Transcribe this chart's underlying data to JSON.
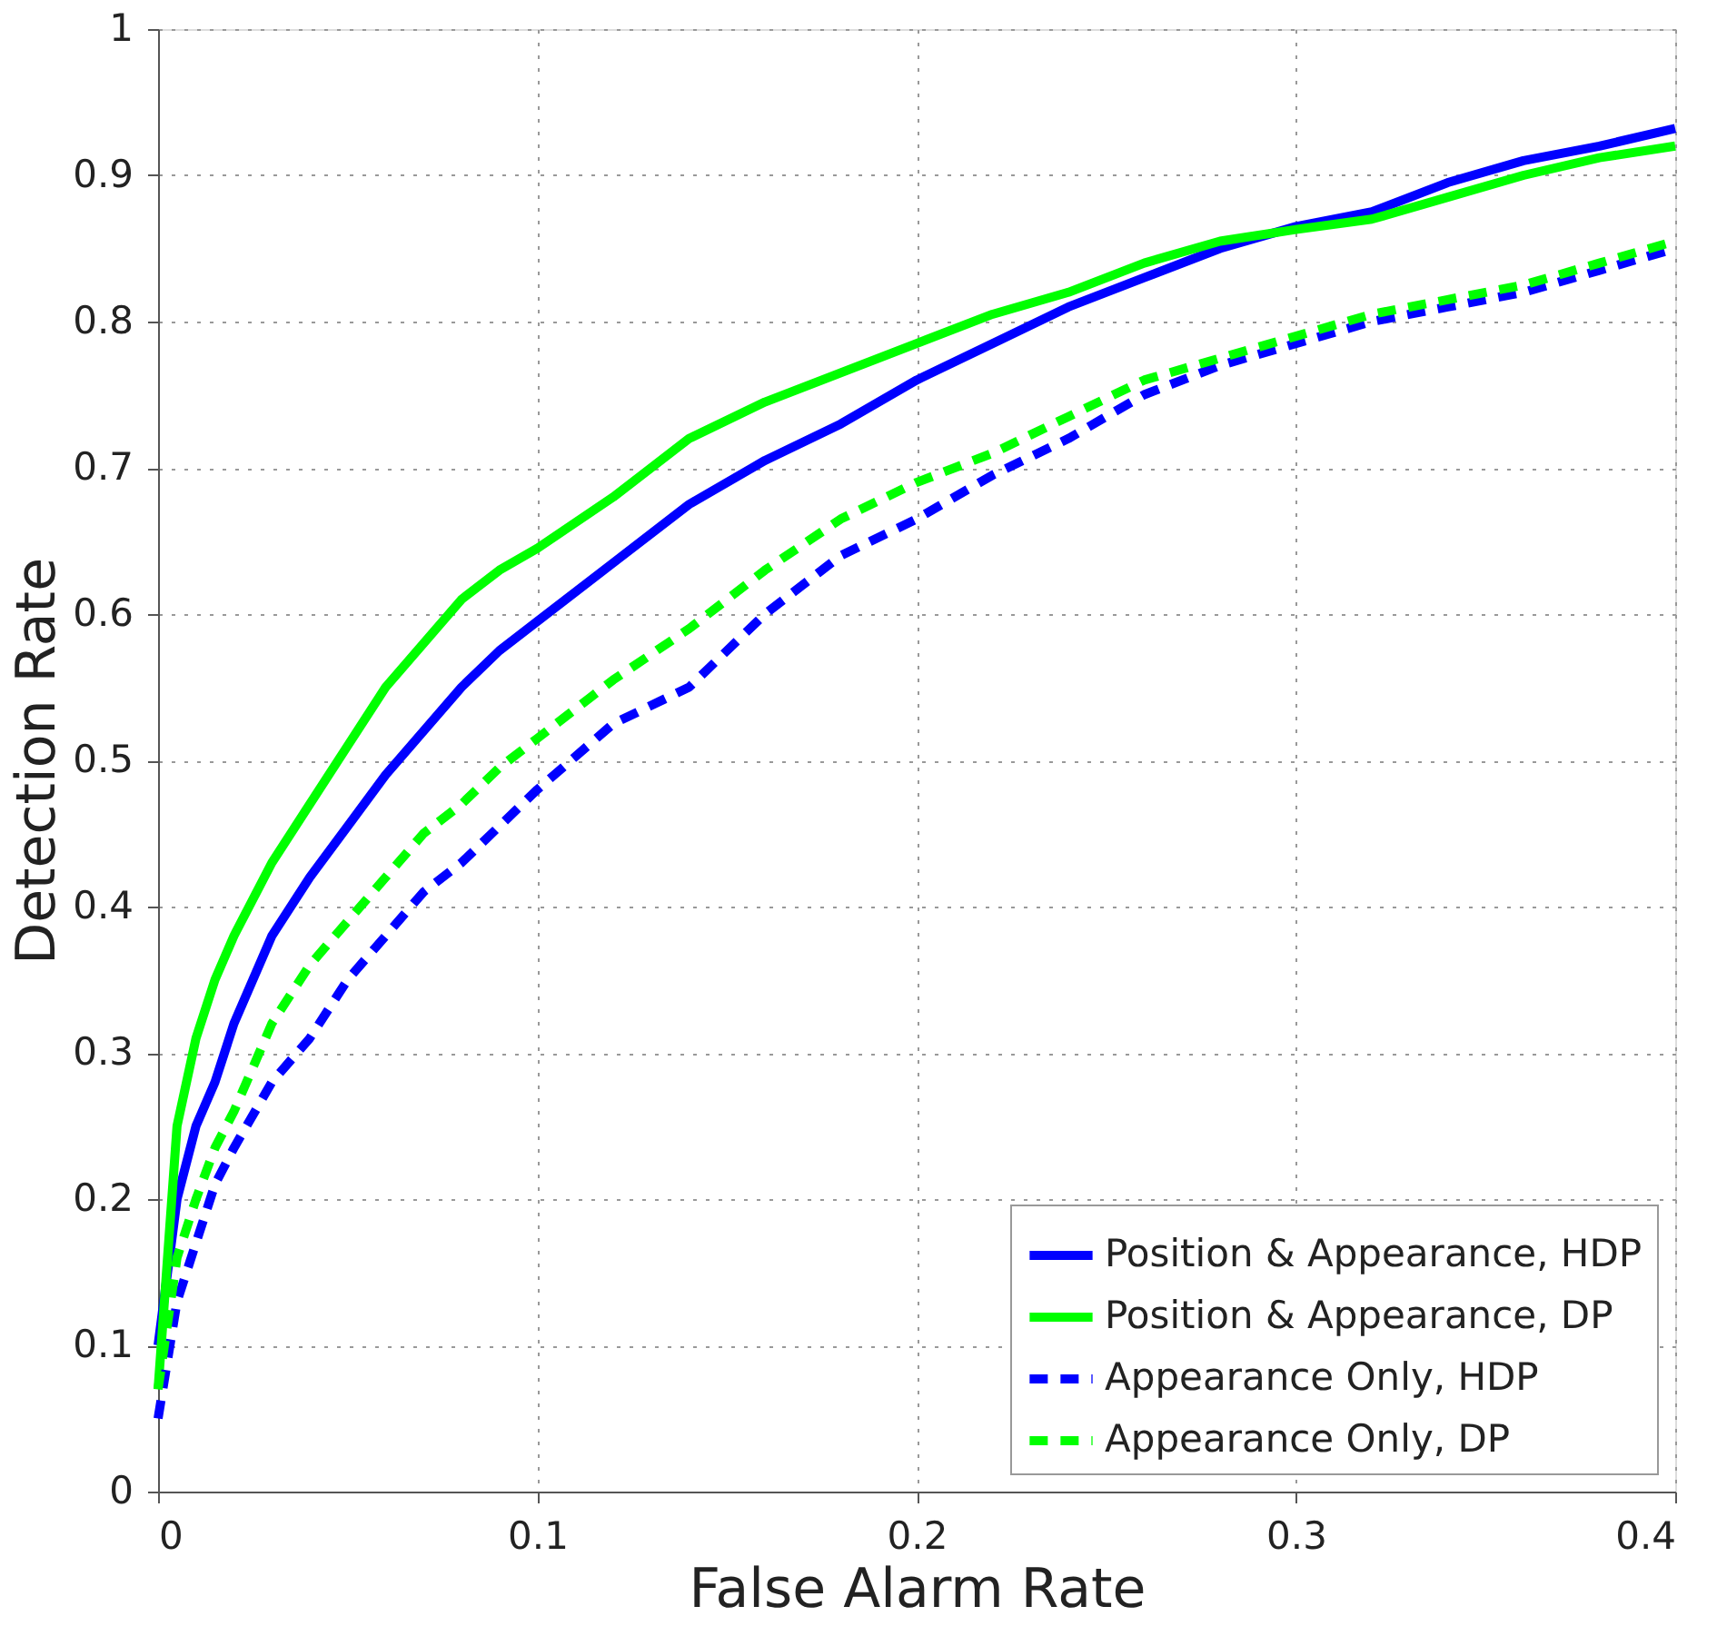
{
  "chart_data": {
    "type": "line",
    "xlabel": "False Alarm Rate",
    "ylabel": "Detection Rate",
    "xlim": [
      0,
      0.4
    ],
    "ylim": [
      0,
      1
    ],
    "xticks": [
      0,
      0.1,
      0.2,
      0.3,
      0.4
    ],
    "yticks": [
      0,
      0.1,
      0.2,
      0.3,
      0.4,
      0.5,
      0.6,
      0.7,
      0.8,
      0.9,
      1
    ],
    "grid": true,
    "legend": "bottom right",
    "marker": "none",
    "x": [
      0,
      0.005,
      0.01,
      0.015,
      0.02,
      0.03,
      0.04,
      0.05,
      0.06,
      0.07,
      0.08,
      0.09,
      0.1,
      0.12,
      0.14,
      0.16,
      0.18,
      0.2,
      0.22,
      0.24,
      0.26,
      0.28,
      0.3,
      0.32,
      0.34,
      0.36,
      0.38,
      0.4
    ],
    "series": [
      {
        "name": "Position & Appearance, HDP",
        "color": "#0000ff",
        "line_style": "solid",
        "values": [
          0.1,
          0.2,
          0.25,
          0.28,
          0.32,
          0.38,
          0.42,
          0.455,
          0.49,
          0.52,
          0.55,
          0.575,
          0.595,
          0.635,
          0.675,
          0.705,
          0.73,
          0.76,
          0.785,
          0.81,
          0.83,
          0.85,
          0.865,
          0.875,
          0.895,
          0.91,
          0.92,
          0.932
        ]
      },
      {
        "name": "Position & Appearance, DP",
        "color": "#00ff00",
        "line_style": "solid",
        "values": [
          0.07,
          0.25,
          0.31,
          0.35,
          0.38,
          0.43,
          0.47,
          0.51,
          0.55,
          0.58,
          0.61,
          0.63,
          0.645,
          0.68,
          0.72,
          0.745,
          0.765,
          0.785,
          0.805,
          0.82,
          0.84,
          0.855,
          0.863,
          0.87,
          0.885,
          0.9,
          0.912,
          0.92
        ]
      },
      {
        "name": "Appearance Only, HDP",
        "color": "#0000ff",
        "line_style": "dashed",
        "values": [
          0.05,
          0.13,
          0.17,
          0.21,
          0.235,
          0.28,
          0.31,
          0.35,
          0.38,
          0.41,
          0.43,
          0.455,
          0.48,
          0.525,
          0.55,
          0.6,
          0.64,
          0.665,
          0.695,
          0.72,
          0.75,
          0.77,
          0.785,
          0.8,
          0.81,
          0.82,
          0.835,
          0.85
        ]
      },
      {
        "name": "Appearance Only, DP",
        "color": "#00ff00",
        "line_style": "dashed",
        "values": [
          0.07,
          0.16,
          0.2,
          0.235,
          0.26,
          0.32,
          0.36,
          0.39,
          0.42,
          0.45,
          0.47,
          0.495,
          0.515,
          0.555,
          0.59,
          0.63,
          0.665,
          0.69,
          0.71,
          0.735,
          0.76,
          0.775,
          0.79,
          0.805,
          0.815,
          0.825,
          0.84,
          0.855
        ]
      }
    ]
  }
}
